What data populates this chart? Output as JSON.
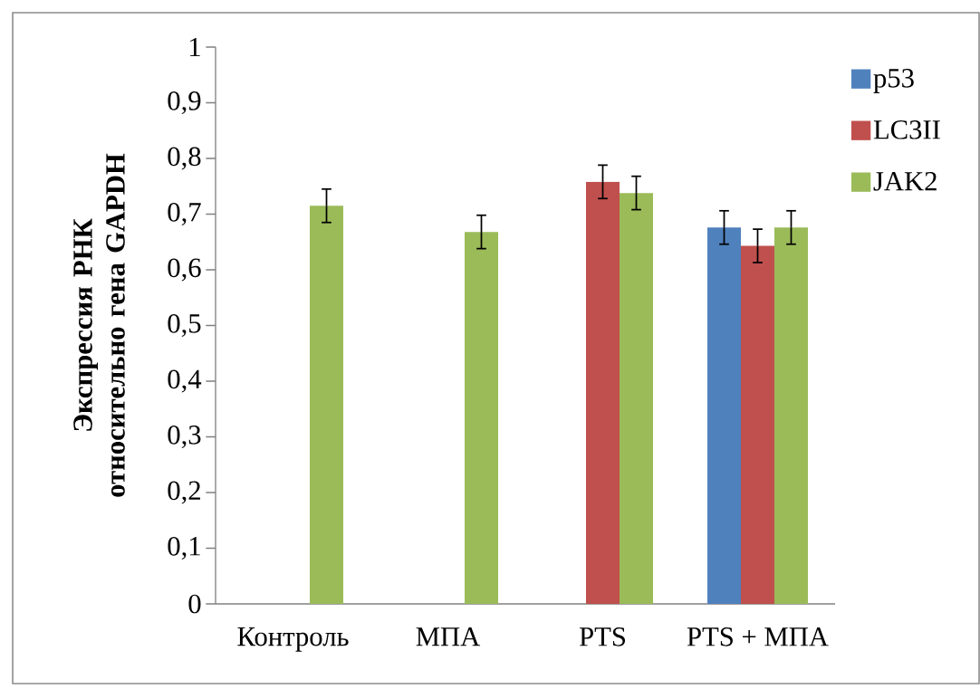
{
  "chart_data": {
    "type": "bar",
    "ylabel": "Экспрессия РНК относительно гена GAPDH",
    "categories": [
      "Контроль",
      "МПА",
      "PTS",
      "PTS + МПА"
    ],
    "series": [
      {
        "name": "p53",
        "color": "#4f81bd",
        "values": [
          null,
          null,
          null,
          0.676
        ],
        "errors": [
          null,
          null,
          null,
          0.03
        ]
      },
      {
        "name": "LC3II",
        "color": "#c0504d",
        "values": [
          null,
          null,
          0.758,
          0.643
        ],
        "errors": [
          null,
          null,
          0.03,
          0.03
        ]
      },
      {
        "name": "JAK2",
        "color": "#9bbb59",
        "values": [
          0.715,
          0.668,
          0.738,
          0.676
        ],
        "errors": [
          0.03,
          0.03,
          0.03,
          0.03
        ]
      }
    ],
    "ylim": [
      0,
      1
    ],
    "yticks": [
      0,
      {
        "value": 0.1,
        "label": "0,1"
      },
      {
        "value": 0.2,
        "label": "0,2"
      },
      {
        "value": 0.3,
        "label": "0,3"
      },
      {
        "value": 0.4,
        "label": "0,4"
      },
      {
        "value": 0.5,
        "label": "0,5"
      },
      {
        "value": 0.6,
        "label": "0,6"
      },
      {
        "value": 0.7,
        "label": "0,7"
      },
      {
        "value": 0.8,
        "label": "0,8"
      },
      {
        "value": 0.9,
        "label": "0,9"
      },
      1
    ],
    "legend": "right"
  }
}
